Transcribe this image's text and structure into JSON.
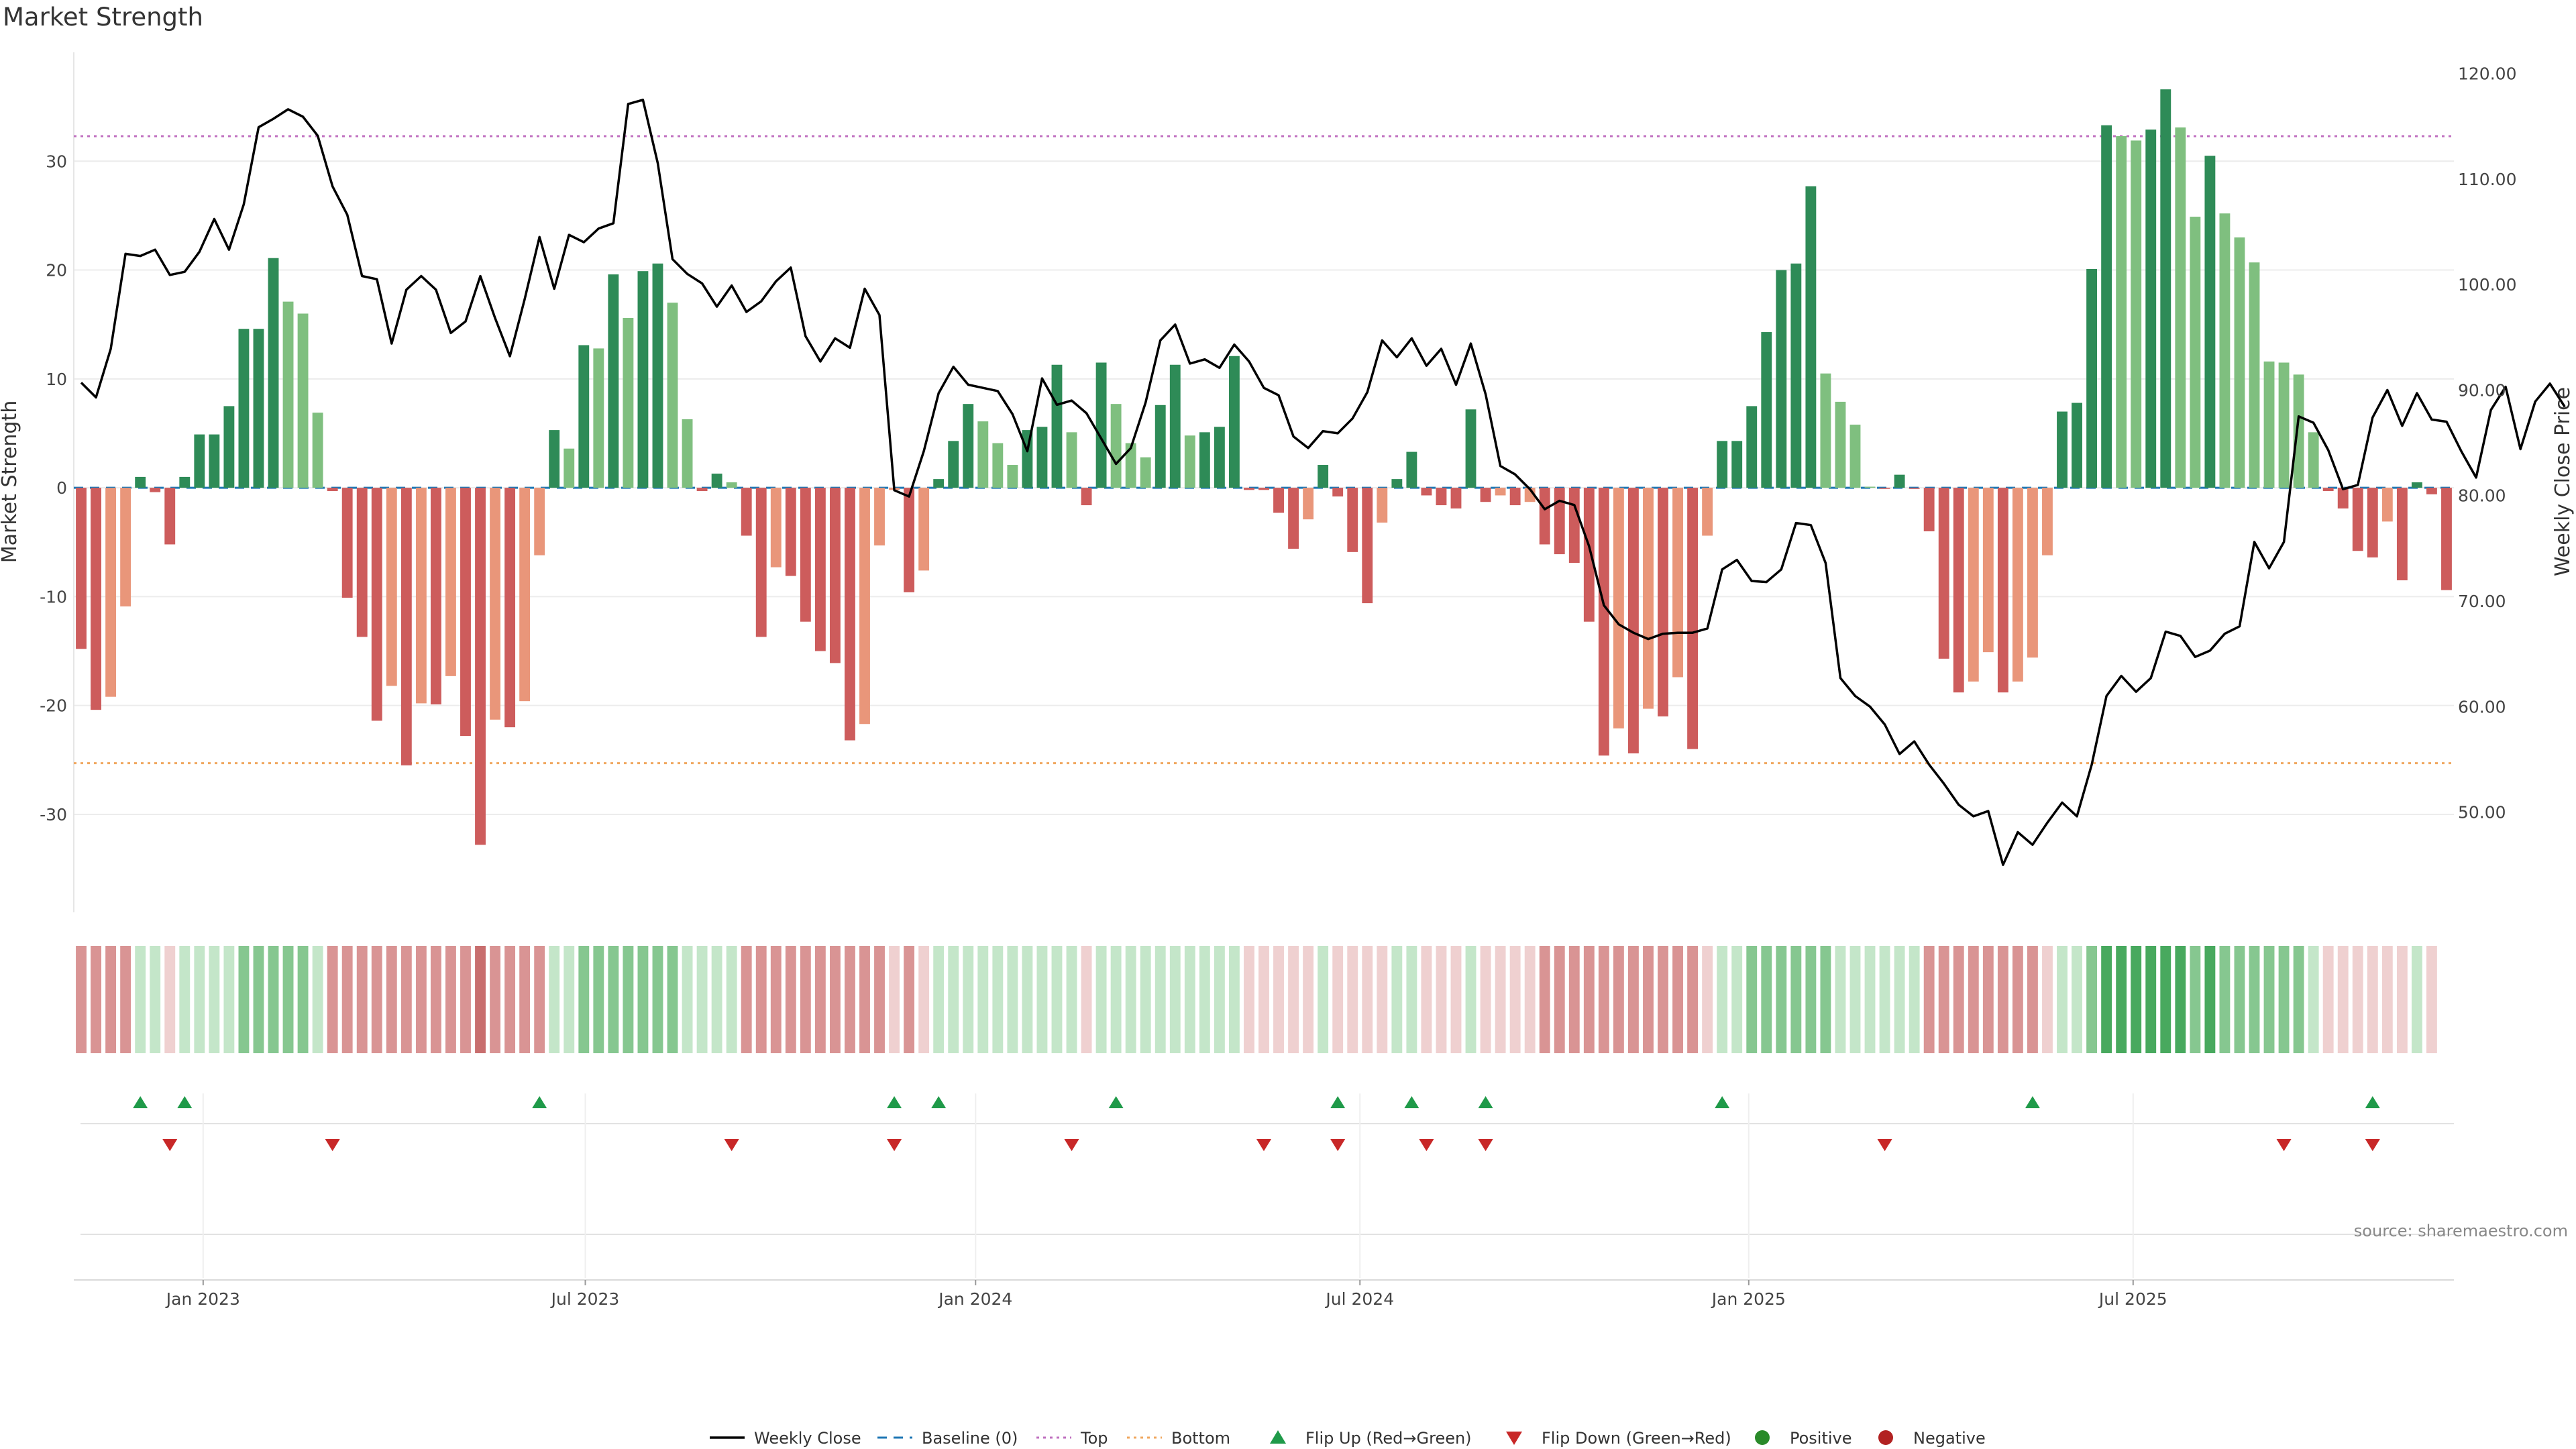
{
  "title": "Market Strength",
  "source": "source: sharemaestro.com",
  "colors": {
    "strong_pos": "#2e8b57",
    "weak_pos": "#7fbf7f",
    "strong_neg": "#cd5c5c",
    "weak_neg": "#e9967a",
    "line": "#000000",
    "baseline": "#1f77b4",
    "top": "#c071c0",
    "bottom": "#f0a860",
    "flip_up": "#1f9a49",
    "flip_down": "#c82828",
    "positive": "#2a8a2a",
    "negative": "#b22222"
  },
  "chart_data": {
    "type": "bar",
    "title": "Market Strength",
    "ylabel": "Market Strength",
    "y2label": "Weekly Close Price",
    "ylim": [
      -39,
      40
    ],
    "y2lim": [
      40.5,
      122
    ],
    "yticks": [
      -30,
      -20,
      -10,
      0,
      10,
      20,
      30
    ],
    "y2ticks": [
      "50.00",
      "60.00",
      "70.00",
      "80.00",
      "90.00",
      "100.00",
      "110.00",
      "120.00"
    ],
    "xticks": [
      {
        "label": "Jan 2023",
        "week": 8.75
      },
      {
        "label": "Jul 2023",
        "week": 34.6
      },
      {
        "label": "Jan 2024",
        "week": 61.0
      },
      {
        "label": "Jul 2024",
        "week": 87.0
      },
      {
        "label": "Jan 2025",
        "week": 113.3
      },
      {
        "label": "Jul 2025",
        "week": 139.3
      }
    ],
    "top_line": 32.3,
    "bottom_line": -25.3,
    "strength": [
      -14.8,
      -20.4,
      -19.2,
      -10.9,
      1.0,
      -0.4,
      -5.2,
      1.0,
      4.9,
      4.9,
      7.5,
      14.6,
      14.6,
      21.1,
      17.1,
      16.0,
      6.9,
      -0.3,
      -10.1,
      -13.7,
      -21.4,
      -18.2,
      -25.5,
      -19.8,
      -19.9,
      -17.3,
      -22.8,
      -32.8,
      -21.3,
      -22.0,
      -19.6,
      -6.2,
      5.3,
      3.6,
      13.1,
      12.8,
      19.6,
      15.6,
      19.9,
      20.6,
      17.0,
      6.3,
      -0.3,
      1.3,
      0.5,
      -4.4,
      -13.7,
      -7.3,
      -8.1,
      -12.3,
      -15.0,
      -16.1,
      -23.2,
      -21.7,
      -5.3,
      -0.2,
      -9.6,
      -7.6,
      0.8,
      4.3,
      7.7,
      6.1,
      4.1,
      2.1,
      5.3,
      5.6,
      11.3,
      5.1,
      -1.6,
      11.5,
      7.7,
      4.1,
      2.8,
      7.6,
      11.3,
      4.8,
      5.1,
      5.6,
      12.1,
      -0.2,
      -0.2,
      -2.3,
      -5.6,
      -2.9,
      2.1,
      -0.8,
      -5.9,
      -10.6,
      -3.2,
      0.8,
      3.3,
      -0.7,
      -1.6,
      -1.9,
      7.2,
      -1.3,
      -0.7,
      -1.6,
      -1.3,
      -5.2,
      -6.1,
      -6.9,
      -12.3,
      -24.6,
      -22.1,
      -24.4,
      -20.3,
      -21.0,
      -17.4,
      -24.0,
      -4.4,
      4.3,
      4.3,
      7.5,
      14.3,
      20.0,
      20.6,
      27.7,
      10.5,
      7.9,
      5.8,
      0.1,
      -0.1,
      1.2,
      -0.1,
      -4.0,
      -15.7,
      -18.8,
      -17.8,
      -15.1,
      -18.8,
      -17.8,
      -15.6,
      -6.2,
      7.0,
      7.8,
      20.1,
      33.3,
      32.3,
      31.9,
      32.9,
      36.6,
      33.1,
      24.9,
      30.5,
      25.2,
      23.0,
      20.7,
      11.6,
      11.5,
      10.4,
      5.1,
      -0.3,
      -1.9,
      -5.8,
      -6.4,
      -3.1,
      -8.5,
      0.5,
      -0.6,
      -9.4
    ],
    "close": [
      90.7,
      89.3,
      93.9,
      102.9,
      102.7,
      103.3,
      100.9,
      101.2,
      103.1,
      106.2,
      103.3,
      107.6,
      114.9,
      115.7,
      116.6,
      115.9,
      114.1,
      109.3,
      106.6,
      100.8,
      100.5,
      94.4,
      99.5,
      100.8,
      99.5,
      95.4,
      96.5,
      100.8,
      96.8,
      93.2,
      98.6,
      104.5,
      99.6,
      104.7,
      104.0,
      105.3,
      105.8,
      117.1,
      117.5,
      111.5,
      102.4,
      101.0,
      100.1,
      97.9,
      99.9,
      97.4,
      98.4,
      100.3,
      101.6,
      95.1,
      92.7,
      94.9,
      94.0,
      99.6,
      97.1,
      80.5,
      79.9,
      84.2,
      89.7,
      92.2,
      90.5,
      90.2,
      89.9,
      87.7,
      84.2,
      91.1,
      88.6,
      89.0,
      87.8,
      85.4,
      83.0,
      84.5,
      88.8,
      94.7,
      96.2,
      92.5,
      92.9,
      92.1,
      94.3,
      92.7,
      90.2,
      89.5,
      85.6,
      84.5,
      86.1,
      85.9,
      87.3,
      89.8,
      94.7,
      93.1,
      94.9,
      92.3,
      93.9,
      90.5,
      94.4,
      89.6,
      82.8,
      82.0,
      80.6,
      78.7,
      79.5,
      79.1,
      75.2,
      69.6,
      67.8,
      67.0,
      66.4,
      66.9,
      67.0,
      67.0,
      67.4,
      73.0,
      73.9,
      71.9,
      71.8,
      73.0,
      77.4,
      77.2,
      73.6,
      62.7,
      61.0,
      60.0,
      58.3,
      55.5,
      56.7,
      54.5,
      52.7,
      50.7,
      49.6,
      50.1,
      45.0,
      48.1,
      46.9,
      49.0,
      50.9,
      49.6,
      54.5,
      61.0,
      62.9,
      61.4,
      62.7,
      67.1,
      66.7,
      64.7,
      65.3,
      66.9,
      67.6,
      75.6,
      73.1,
      75.6,
      87.5,
      86.9,
      84.3,
      80.6,
      81.0,
      87.4,
      90.0,
      86.6,
      89.7,
      87.2,
      87.0,
      84.2,
      81.7,
      88.1,
      90.3,
      84.4,
      88.9,
      90.6,
      88.4
    ],
    "grid": true,
    "heat": [
      -2,
      -2,
      -2,
      -2,
      1,
      1,
      -1,
      1,
      1,
      1,
      1,
      2,
      2,
      2,
      2,
      2,
      1,
      -2,
      -2,
      -2,
      -2,
      -2,
      -2,
      -2,
      -2,
      -2,
      -2,
      -3,
      -2,
      -2,
      -2,
      -2,
      1,
      1,
      2,
      2,
      2,
      2,
      2,
      2,
      2,
      1,
      1,
      1,
      1,
      -2,
      -2,
      -2,
      -2,
      -2,
      -2,
      -2,
      -2,
      -2,
      -2,
      -1,
      -2,
      -1,
      1,
      1,
      1,
      1,
      1,
      1,
      1,
      1,
      1,
      1,
      -1,
      1,
      1,
      1,
      1,
      1,
      1,
      1,
      1,
      1,
      1,
      -1,
      -1,
      -1,
      -1,
      -1,
      1,
      -1,
      -1,
      -1,
      -1,
      1,
      1,
      -1,
      -1,
      -1,
      1,
      -1,
      -1,
      -1,
      -1,
      -2,
      -2,
      -2,
      -2,
      -2,
      -2,
      -2,
      -2,
      -2,
      -2,
      -2,
      -1,
      1,
      1,
      2,
      2,
      2,
      2,
      2,
      2,
      1,
      1,
      1,
      1,
      1,
      1,
      -2,
      -2,
      -2,
      -2,
      -2,
      -2,
      -2,
      -2,
      -1,
      1,
      1,
      2,
      3,
      3,
      3,
      3,
      3,
      3,
      2,
      3,
      2,
      2,
      2,
      2,
      2,
      2,
      1,
      -1,
      -1,
      -1,
      -1,
      -1,
      -1,
      1,
      -1
    ],
    "flip_up_weeks": [
      4,
      7,
      31,
      55,
      58,
      70,
      85,
      90,
      95,
      111,
      132,
      155
    ],
    "flip_down_weeks": [
      6,
      17,
      44,
      55,
      67,
      80,
      85,
      91,
      95,
      122,
      149,
      155
    ],
    "legend": [
      {
        "label": "Weekly Close",
        "kind": "line"
      },
      {
        "label": "Baseline (0)",
        "kind": "dash"
      },
      {
        "label": "Top",
        "kind": "dot-top"
      },
      {
        "label": "Bottom",
        "kind": "dot-bottom"
      },
      {
        "label": "Flip Up (Red→Green)",
        "kind": "tri-up"
      },
      {
        "label": "Flip Down (Green→Red)",
        "kind": "tri-down"
      },
      {
        "label": "Positive",
        "kind": "dot-pos"
      },
      {
        "label": "Negative",
        "kind": "dot-neg"
      }
    ]
  }
}
